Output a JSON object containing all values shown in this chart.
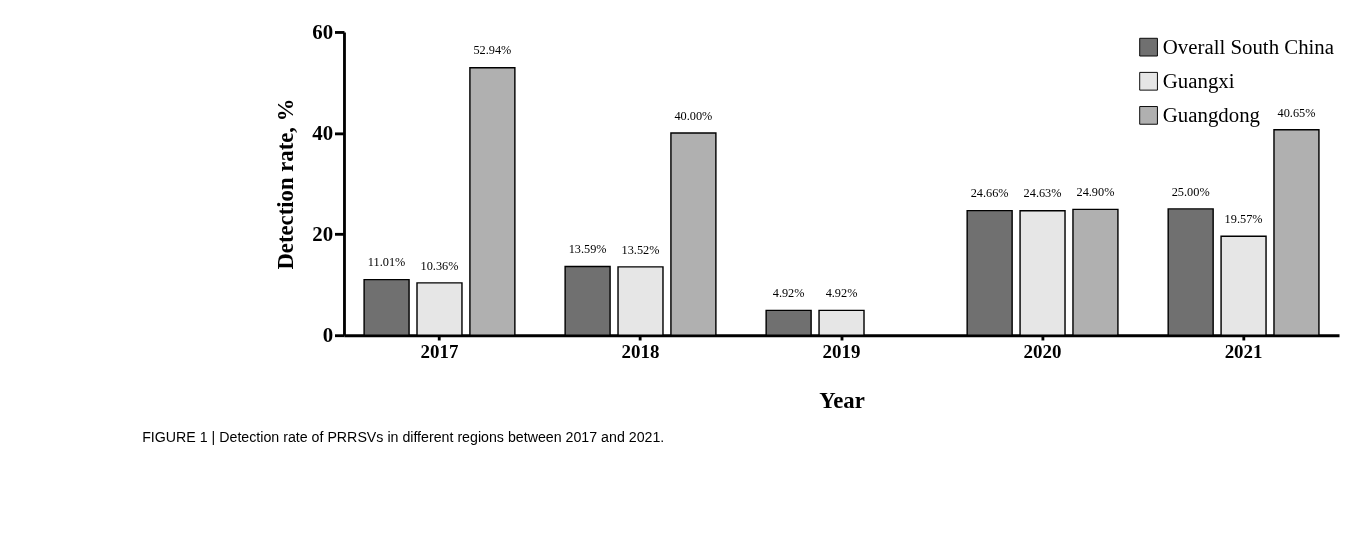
{
  "chart_data": {
    "type": "bar",
    "xlabel": "Year",
    "ylabel": "Detection rate, %",
    "categories": [
      "2017",
      "2018",
      "2019",
      "2020",
      "2021"
    ],
    "series": [
      {
        "name": "Overall South China",
        "color": "#707070",
        "values": [
          11.01,
          13.59,
          4.92,
          24.66,
          25.0
        ],
        "value_labels": [
          "11.01%",
          "13.59%",
          "4.92%",
          "24.66%",
          "25.00%"
        ]
      },
      {
        "name": "Guangxi",
        "color": "#e6e6e6",
        "values": [
          10.36,
          13.52,
          4.92,
          24.63,
          19.57
        ],
        "value_labels": [
          "10.36%",
          "13.52%",
          "4.92%",
          "24.63%",
          "19.57%"
        ]
      },
      {
        "name": "Guangdong",
        "color": "#b0b0b0",
        "values": [
          52.94,
          40.0,
          null,
          24.9,
          40.65
        ],
        "value_labels": [
          "52.94%",
          "40.00%",
          null,
          "24.90%",
          "40.65%"
        ]
      }
    ],
    "ylim": [
      0,
      60
    ],
    "yticks": [
      0,
      20,
      40,
      60
    ],
    "grid": false,
    "legend": "top right",
    "annotations": [
      "FIGURE 1 | Detection rate of PRRSVs in different regions between 2017 and 2021."
    ]
  }
}
